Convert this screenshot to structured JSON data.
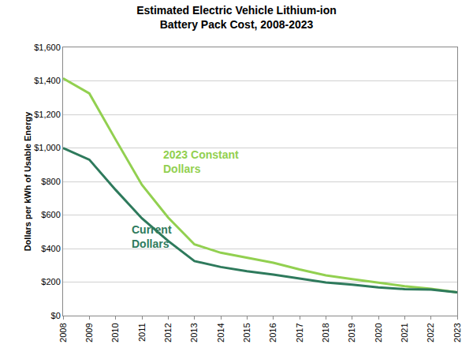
{
  "chart_data": {
    "type": "line",
    "title": "Estimated Electric Vehicle Lithium-ion\nBattery Pack Cost, 2008-2023",
    "y_label": "Dollars per kWh of Usable Energy",
    "categories": [
      "2008",
      "2009",
      "2010",
      "2011",
      "2012",
      "2013",
      "2014",
      "2015",
      "2016",
      "2017",
      "2018",
      "2019",
      "2020",
      "2021",
      "2022",
      "2023"
    ],
    "series": [
      {
        "name": "2023 Constant Dollars",
        "color": "#92D050",
        "values": [
          1415,
          1325,
          1050,
          780,
          585,
          425,
          375,
          345,
          315,
          275,
          240,
          218,
          195,
          175,
          160,
          139
        ]
      },
      {
        "name": "Current Dollars",
        "color": "#2E7A5C",
        "values": [
          1000,
          930,
          750,
          580,
          445,
          325,
          290,
          265,
          245,
          220,
          198,
          185,
          168,
          158,
          155,
          139
        ]
      }
    ],
    "ylim": [
      0,
      1600
    ],
    "yticks": [
      {
        "value": 0,
        "label": "$0"
      },
      {
        "value": 200,
        "label": "$200"
      },
      {
        "value": 400,
        "label": "$400"
      },
      {
        "value": 600,
        "label": "$600"
      },
      {
        "value": 800,
        "label": "$800"
      },
      {
        "value": 1000,
        "label": "$1,000"
      },
      {
        "value": 1200,
        "label": "$1,200"
      },
      {
        "value": 1400,
        "label": "$1,400"
      },
      {
        "value": 1600,
        "label": "$1,600"
      }
    ],
    "grid": true
  }
}
